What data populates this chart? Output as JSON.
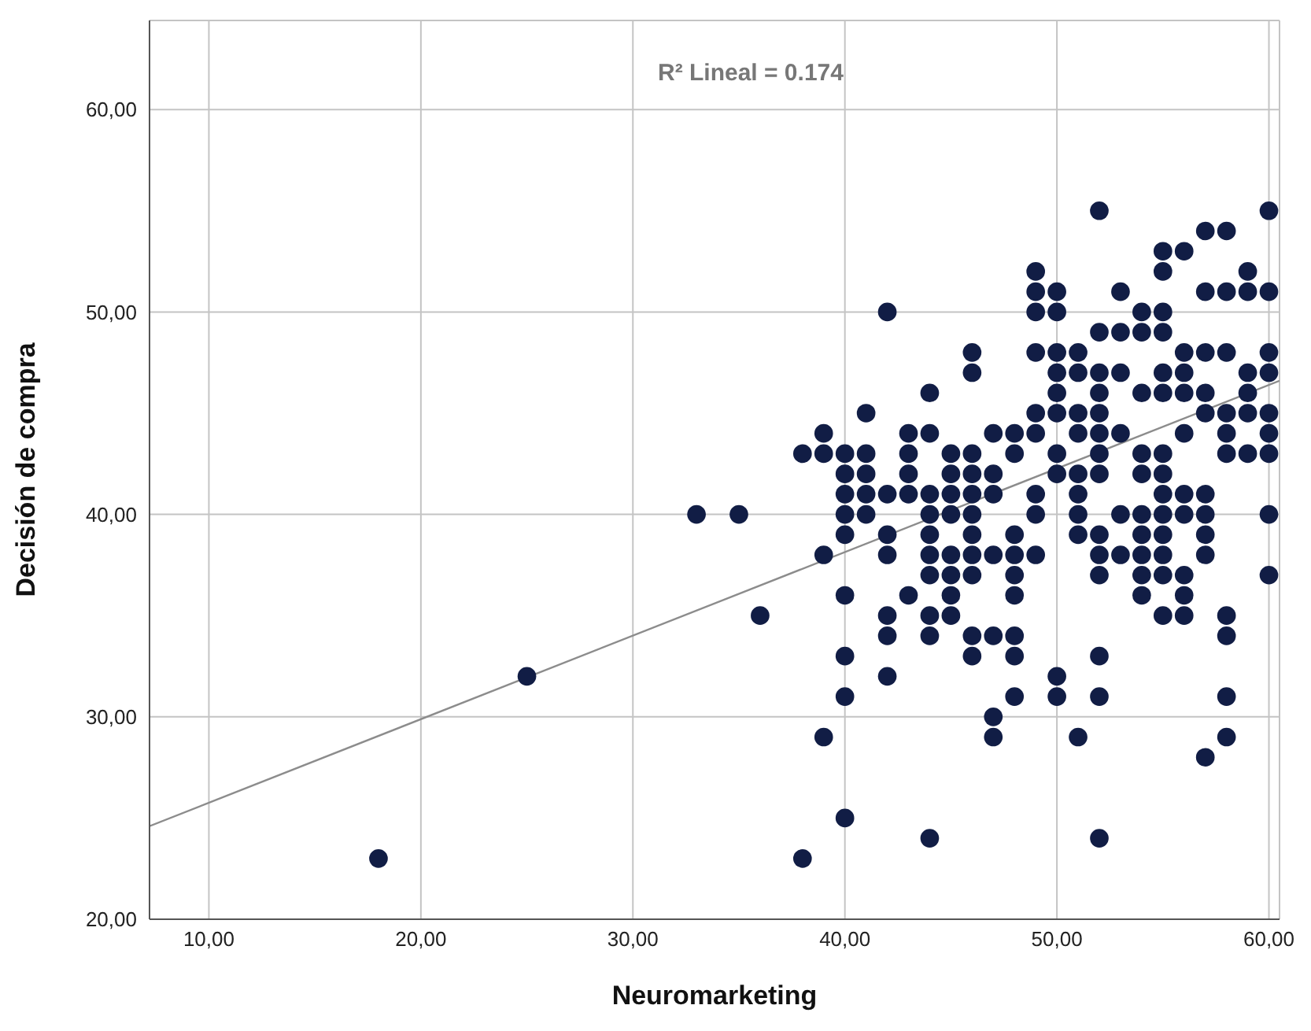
{
  "chart_data": {
    "type": "scatter",
    "xlabel": "Neuromarketing",
    "ylabel": "Decisión de compra",
    "annotations": [
      "R² Lineal = 0.174"
    ],
    "xlim": [
      7.2,
      60.5
    ],
    "ylim": [
      20,
      64.4
    ],
    "xticks": [
      {
        "value": 10,
        "label": "10,00"
      },
      {
        "value": 20,
        "label": "20,00"
      },
      {
        "value": 30,
        "label": "30,00"
      },
      {
        "value": 40,
        "label": "40,00"
      },
      {
        "value": 50,
        "label": "50,00"
      },
      {
        "value": 60,
        "label": "60,00"
      }
    ],
    "yticks": [
      {
        "value": 20,
        "label": "20,00"
      },
      {
        "value": 30,
        "label": "30,00"
      },
      {
        "value": 40,
        "label": "40,00"
      },
      {
        "value": 50,
        "label": "50,00"
      },
      {
        "value": 60,
        "label": "60,00"
      }
    ],
    "grid": true,
    "series": [
      {
        "marker": "circle",
        "color": "#111d45",
        "x": [
          18,
          25,
          33,
          35,
          36,
          38,
          38,
          39,
          39,
          39,
          39,
          40,
          40,
          40,
          40,
          40,
          40,
          40,
          40,
          40,
          41,
          41,
          41,
          41,
          41,
          42,
          42,
          42,
          42,
          42,
          42,
          42,
          43,
          43,
          43,
          43,
          43,
          44,
          44,
          44,
          44,
          44,
          44,
          44,
          44,
          44,
          44,
          45,
          45,
          45,
          45,
          45,
          45,
          45,
          45,
          46,
          46,
          46,
          46,
          46,
          46,
          46,
          46,
          46,
          46,
          46,
          47,
          47,
          47,
          47,
          47,
          47,
          47,
          48,
          48,
          48,
          48,
          48,
          48,
          48,
          48,
          48,
          49,
          49,
          49,
          49,
          49,
          49,
          49,
          49,
          49,
          50,
          50,
          50,
          50,
          50,
          50,
          50,
          50,
          50,
          50,
          51,
          51,
          51,
          51,
          51,
          51,
          51,
          51,
          51,
          52,
          52,
          52,
          52,
          52,
          52,
          52,
          52,
          52,
          52,
          52,
          52,
          52,
          52,
          53,
          53,
          53,
          53,
          53,
          53,
          54,
          54,
          54,
          54,
          54,
          54,
          54,
          54,
          54,
          54,
          55,
          55,
          55,
          55,
          55,
          55,
          55,
          55,
          55,
          55,
          55,
          55,
          55,
          55,
          56,
          56,
          56,
          56,
          56,
          56,
          56,
          56,
          56,
          56,
          57,
          57,
          57,
          57,
          57,
          57,
          57,
          57,
          57,
          57,
          58,
          58,
          58,
          58,
          58,
          58,
          58,
          58,
          58,
          58,
          59,
          59,
          59,
          59,
          59,
          59,
          60,
          60,
          60,
          60,
          60,
          60,
          60,
          60,
          60
        ],
        "values": [
          23,
          32,
          40,
          40,
          35,
          43,
          23,
          44,
          43,
          38,
          29,
          43,
          42,
          41,
          40,
          39,
          36,
          33,
          31,
          25,
          45,
          43,
          42,
          41,
          40,
          50,
          41,
          39,
          38,
          35,
          34,
          32,
          44,
          43,
          42,
          41,
          36,
          46,
          44,
          41,
          40,
          39,
          38,
          37,
          35,
          34,
          24,
          43,
          42,
          41,
          40,
          38,
          37,
          36,
          35,
          48,
          47,
          43,
          42,
          41,
          40,
          39,
          38,
          37,
          34,
          33,
          44,
          42,
          41,
          38,
          34,
          30,
          29,
          44,
          43,
          39,
          38,
          37,
          36,
          34,
          33,
          31,
          52,
          51,
          50,
          48,
          45,
          44,
          41,
          40,
          38,
          51,
          50,
          48,
          47,
          46,
          45,
          43,
          42,
          32,
          31,
          48,
          47,
          45,
          44,
          42,
          41,
          40,
          39,
          29,
          55,
          49,
          47,
          46,
          45,
          44,
          43,
          42,
          39,
          38,
          37,
          33,
          31,
          24,
          51,
          49,
          47,
          44,
          40,
          38,
          50,
          49,
          46,
          43,
          42,
          40,
          39,
          38,
          37,
          36,
          53,
          52,
          50,
          49,
          47,
          46,
          43,
          42,
          41,
          40,
          39,
          38,
          37,
          35,
          53,
          48,
          47,
          46,
          44,
          41,
          40,
          37,
          36,
          35,
          54,
          51,
          48,
          46,
          45,
          41,
          40,
          39,
          38,
          28,
          54,
          51,
          48,
          45,
          44,
          43,
          35,
          34,
          31,
          29,
          52,
          51,
          47,
          46,
          45,
          43,
          55,
          51,
          48,
          47,
          45,
          44,
          43,
          40,
          37
        ]
      },
      {
        "type": "line",
        "color": "#8c8c8c",
        "x": [
          7.2,
          60.5
        ],
        "values": [
          24.6,
          46.6
        ]
      }
    ]
  }
}
